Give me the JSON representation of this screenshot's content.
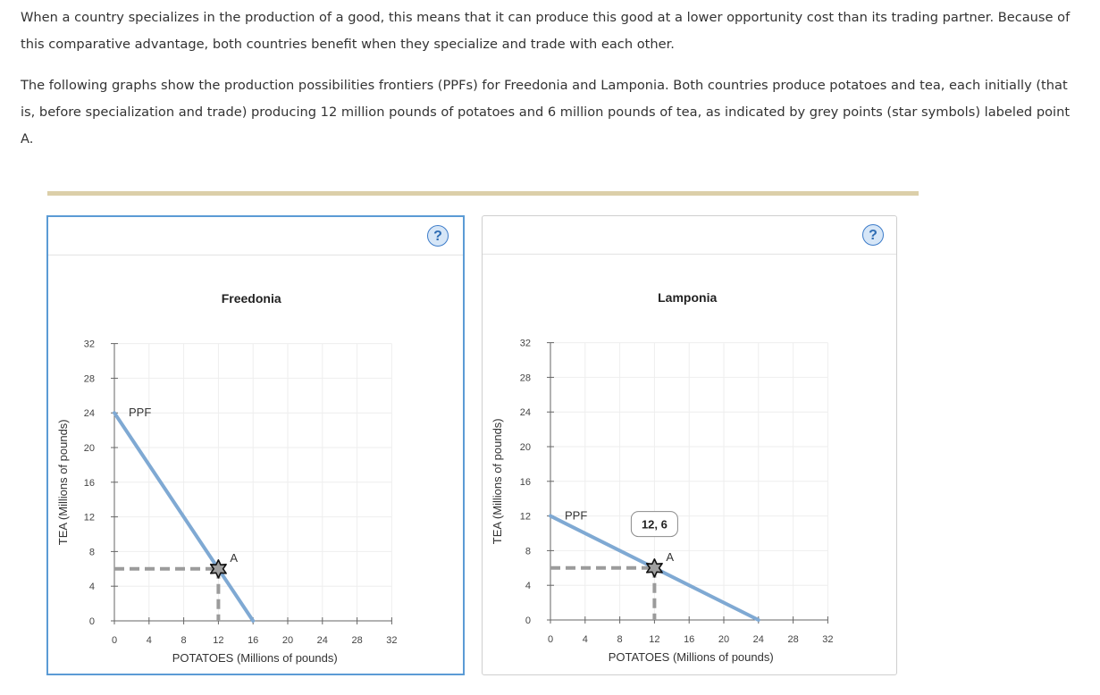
{
  "intro": {
    "paragraph1": "When a country specializes in the production of a good, this means that it can produce this good at a lower opportunity cost than its trading partner. Because of this comparative advantage, both countries benefit when they specialize and trade with each other.",
    "paragraph2": "The following graphs show the production possibilities frontiers (PPFs) for Freedonia and Lamponia. Both countries produce potatoes and tea, each initially (that is, before specialization and trade) producing 12 million pounds of potatoes and 6 million pounds of tea, as indicated by grey points (star symbols) labeled point A."
  },
  "help_icon": "question-mark-icon",
  "colors": {
    "ppf_line": "#7fa9d3",
    "dashed": "#9b9b9b",
    "star_fill": "#a0a0a0",
    "grid": "#eeeeee",
    "divider": "#dccfa9",
    "panel_border_active": "#5b9bd5"
  },
  "chart_data": [
    {
      "type": "line",
      "title": "Freedonia",
      "xlabel": "POTATOES (Millions of pounds)",
      "ylabel": "TEA (Millions of pounds)",
      "xlim": [
        0,
        32
      ],
      "ylim": [
        0,
        32
      ],
      "xticks": [
        0,
        4,
        8,
        12,
        16,
        20,
        24,
        28,
        32
      ],
      "yticks": [
        0,
        4,
        8,
        12,
        16,
        20,
        24,
        28,
        32
      ],
      "grid": true,
      "series": [
        {
          "name": "PPF",
          "x": [
            0,
            16
          ],
          "y": [
            24,
            0
          ]
        }
      ],
      "points": [
        {
          "label": "A",
          "x": 12,
          "y": 6,
          "marker": "star"
        }
      ],
      "tooltip": null
    },
    {
      "type": "line",
      "title": "Lamponia",
      "xlabel": "POTATOES (Millions of pounds)",
      "ylabel": "TEA (Millions of pounds)",
      "xlim": [
        0,
        32
      ],
      "ylim": [
        0,
        32
      ],
      "xticks": [
        0,
        4,
        8,
        12,
        16,
        20,
        24,
        28,
        32
      ],
      "yticks": [
        0,
        4,
        8,
        12,
        16,
        20,
        24,
        28,
        32
      ],
      "grid": true,
      "series": [
        {
          "name": "PPF",
          "x": [
            0,
            24
          ],
          "y": [
            12,
            0
          ]
        }
      ],
      "points": [
        {
          "label": "A",
          "x": 12,
          "y": 6,
          "marker": "star"
        }
      ],
      "tooltip": "12, 6"
    }
  ]
}
